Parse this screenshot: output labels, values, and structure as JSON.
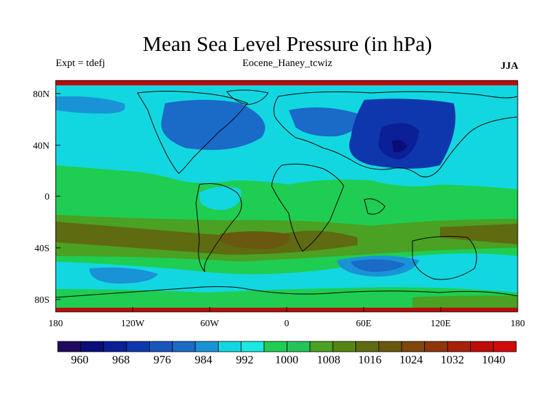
{
  "header": {
    "title": "Mean Sea Level Pressure (in hPa)",
    "left_subtitle": "Expt = tdefj",
    "center_subtitle": "Eocene_Haney_tcwiz",
    "right_subtitle": "JJA"
  },
  "map": {
    "projection": "cylindrical equidistant",
    "lon_range": [
      -180,
      180
    ],
    "lat_range": [
      -90,
      90
    ],
    "lat_ticks": [
      "80N",
      "40N",
      "0",
      "40S",
      "80S"
    ],
    "lon_ticks": [
      "180",
      "120W",
      "60W",
      "0",
      "60E",
      "120E",
      "180"
    ]
  },
  "colorbar": {
    "labels": [
      "960",
      "968",
      "976",
      "984",
      "992",
      "1000",
      "1008",
      "1016",
      "1024",
      "1032",
      "1040"
    ],
    "colors": [
      "#1e0a5e",
      "#0a0c78",
      "#0b1f96",
      "#0f37ad",
      "#1a55bf",
      "#1a6ac8",
      "#1a93d6",
      "#12d7e0",
      "#1be8e0",
      "#1fcd52",
      "#25c45a",
      "#4aa123",
      "#558614",
      "#5f6b10",
      "#6a5710",
      "#7f470c",
      "#8f350a",
      "#a8200a",
      "#bf0c0a",
      "#d00a0a"
    ]
  },
  "legend_colors": {
    "very_low": "#0b2bb0",
    "low": "#1a6ac8",
    "moderate_low": "#1a93d6",
    "near_1000": "#12d7e0",
    "near_1008": "#1fcd52",
    "near_1016": "#4aa123",
    "near_1024": "#6a5710",
    "high": "#c00a0a"
  }
}
